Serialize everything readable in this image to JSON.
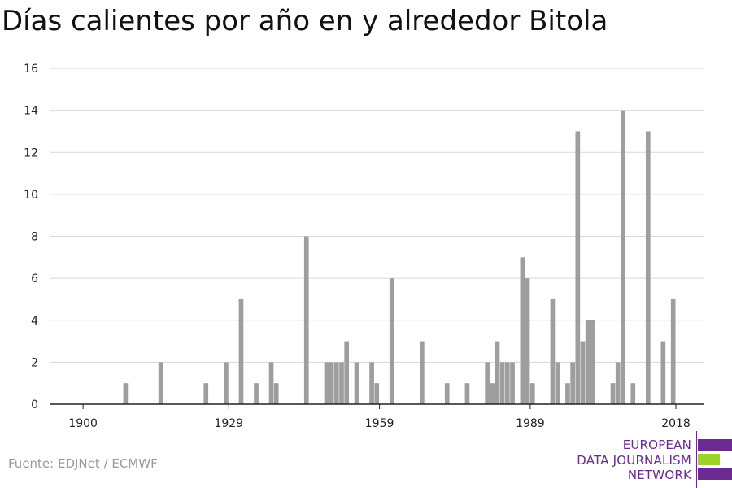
{
  "title": "Días calientes por año en y alrededor Bitola",
  "source": "Fuente: EDJNet / ECMWF",
  "logo": {
    "line1": "EUROPEAN",
    "line2": "DATA JOURNALISM",
    "line3": "NETWORK",
    "purple": "#6a2a8f",
    "green": "#9bd32a"
  },
  "colors": {
    "bar": "#9e9e9e",
    "grid": "#d9d9d9",
    "axis": "#222222"
  },
  "chart_data": {
    "type": "bar",
    "title": "Días calientes por año en y alrededor Bitola",
    "xlabel": "",
    "ylabel": "",
    "ylim": [
      0,
      16
    ],
    "y_ticks": [
      0,
      2,
      4,
      6,
      8,
      10,
      12,
      14,
      16
    ],
    "x_ticks": [
      1900,
      1929,
      1959,
      1989,
      2018
    ],
    "xlim": [
      1894,
      2024
    ],
    "grid": true,
    "x": [
      1909,
      1916,
      1925,
      1929,
      1932,
      1935,
      1938,
      1939,
      1945,
      1949,
      1950,
      1951,
      1952,
      1953,
      1955,
      1958,
      1959,
      1962,
      1968,
      1973,
      1977,
      1981,
      1982,
      1983,
      1984,
      1985,
      1986,
      1988,
      1989,
      1990,
      1994,
      1995,
      1997,
      1998,
      1999,
      2000,
      2001,
      2002,
      2006,
      2007,
      2008,
      2010,
      2013,
      2016,
      2018
    ],
    "values": [
      1,
      2,
      1,
      2,
      5,
      1,
      2,
      1,
      8,
      2,
      2,
      2,
      2,
      3,
      2,
      2,
      1,
      6,
      3,
      1,
      1,
      2,
      1,
      3,
      2,
      2,
      2,
      7,
      6,
      1,
      5,
      2,
      1,
      2,
      13,
      3,
      4,
      4,
      1,
      2,
      14,
      1,
      13,
      3,
      5
    ]
  }
}
